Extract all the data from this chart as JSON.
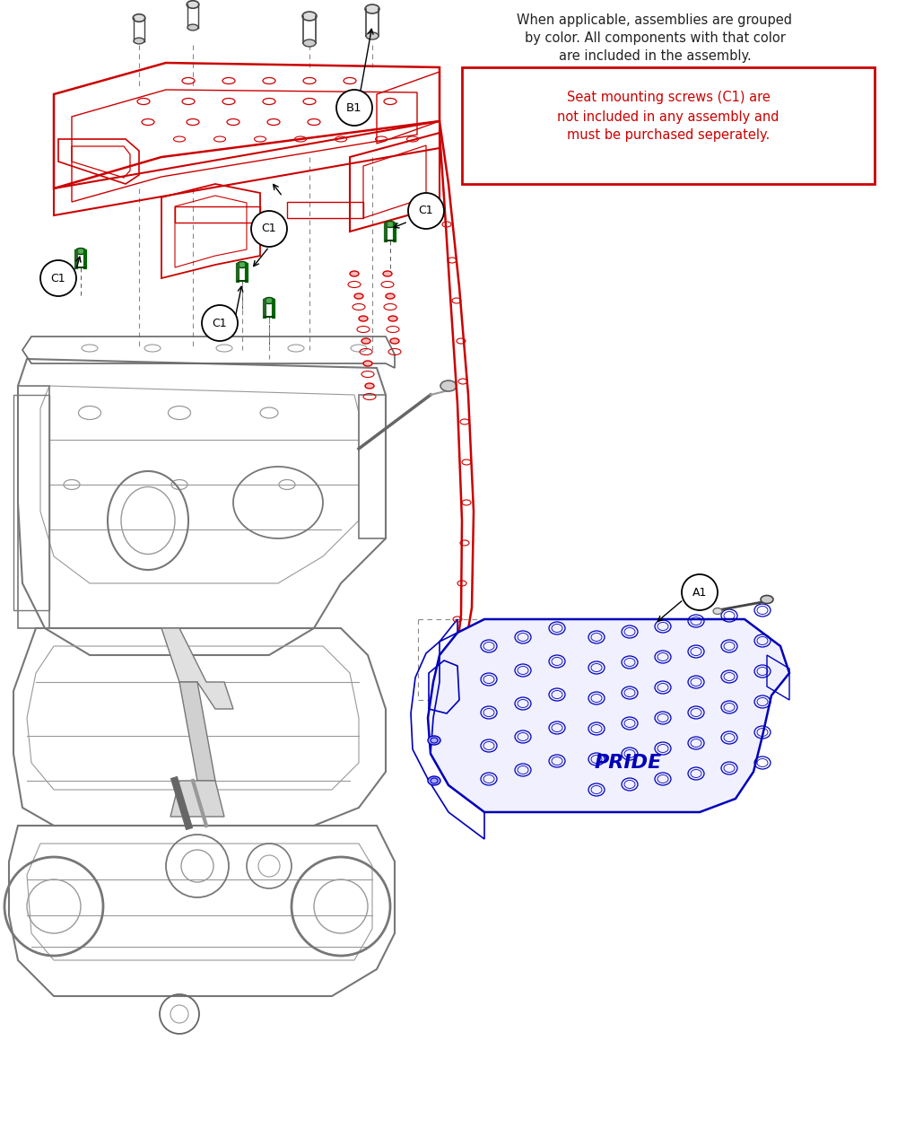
{
  "figsize": [
    10.0,
    12.67
  ],
  "dpi": 100,
  "bg_color": "#ffffff",
  "text_info_line1": "When applicable, assemblies are grouped",
  "text_info_line2": "by color. All components with that color",
  "text_info_line3": "are included in the assembly.",
  "warning_line1": "Seat mounting screws (C1) are",
  "warning_line2": "not included in any assembly and",
  "warning_line3": "must be purchased seperately.",
  "red": "#cc0000",
  "blue": "#0000bb",
  "green_screw": "#006600",
  "dark_gray": "#444444",
  "mid_gray": "#666666",
  "light_gray": "#999999",
  "chassis_gray": "#777777",
  "black": "#111111"
}
